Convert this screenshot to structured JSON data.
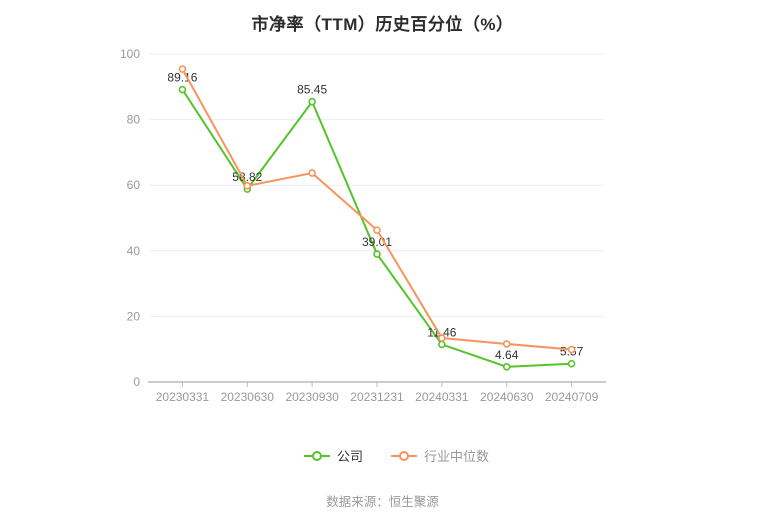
{
  "footer": {
    "source_label": "数据来源：恒生聚源"
  },
  "chart_data": {
    "type": "line",
    "title": "市净率（TTM）历史百分位（%）",
    "categories": [
      "20230331",
      "20230630",
      "20230930",
      "20231231",
      "20240331",
      "20240630",
      "20240709"
    ],
    "series": [
      {
        "name": "公司",
        "color": "#55C32A",
        "values": [
          89.16,
          58.82,
          85.45,
          39.01,
          11.46,
          4.64,
          5.57
        ],
        "show_labels": true,
        "label_color": "#333333",
        "legend_text_color": "#333333"
      },
      {
        "name": "行业中位数",
        "color": "#F9935E",
        "values": [
          95.4,
          59.8,
          63.7,
          46.3,
          13.4,
          11.6,
          9.9
        ],
        "show_labels": false,
        "label_color": "#333333",
        "legend_text_color": "#999999"
      }
    ],
    "xlabel": "",
    "ylabel": "",
    "ylim": [
      0,
      100
    ],
    "yticks": [
      0,
      20,
      40,
      60,
      80,
      100
    ],
    "grid": true,
    "legend_position": "bottom",
    "grid_color": "#E9EDF6",
    "axis_color": "#BBBBBB",
    "tick_label_color": "#999999",
    "marker_style": "empty-circle"
  }
}
